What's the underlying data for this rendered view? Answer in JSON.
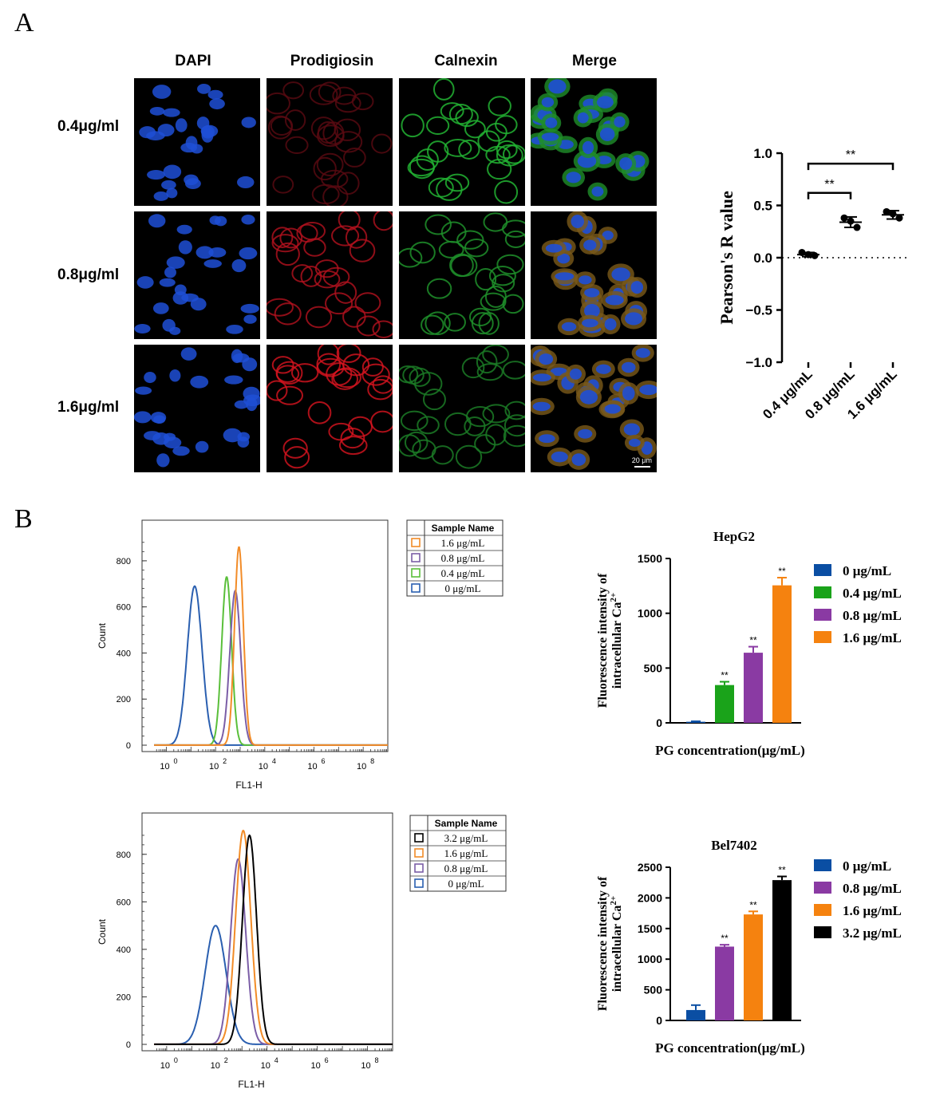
{
  "panel_a_label": "A",
  "panel_b_label": "B",
  "microscopy": {
    "columns": [
      "DAPI",
      "Prodigiosin",
      "Calnexin",
      "Merge"
    ],
    "rows": [
      "0.4μg/ml",
      "0.8μg/ml",
      "1.6μg/ml"
    ],
    "scale_bar_label": "20 μm"
  },
  "chart_data": [
    {
      "type": "scatter",
      "id": "pearson",
      "ylabel": "Pearson's R value",
      "categories": [
        "0.4 μg/mL",
        "0.8 μg/mL",
        "1.6 μg/mL"
      ],
      "points": [
        [
          0.05,
          0.03,
          0.02
        ],
        [
          0.38,
          0.35,
          0.29
        ],
        [
          0.44,
          0.42,
          0.38
        ]
      ],
      "means": [
        0.03,
        0.34,
        0.41
      ],
      "errors": [
        0.02,
        0.05,
        0.04
      ],
      "ylim": [
        -1.0,
        1.0
      ],
      "yticks": [
        "1.0",
        "0.5",
        "0.0",
        "−0.5",
        "−1.0"
      ],
      "significance": [
        "**",
        "**"
      ]
    },
    {
      "type": "line",
      "id": "hepg2-hist",
      "xlabel": "FL1-H",
      "ylabel": "Count",
      "ylim": [
        0,
        900
      ],
      "xscale": "log",
      "xtick_exponents": [
        "0",
        "2",
        "4",
        "6",
        "8"
      ],
      "yticks": [
        "0",
        "200",
        "400",
        "600",
        "800"
      ],
      "legend_title": "Sample Name",
      "legend_position": "top-right",
      "series": [
        {
          "name": "1.6 μg/mL",
          "color": "#f28c28",
          "peak_log10": 2.95,
          "peak_count": 860,
          "width": 0.18
        },
        {
          "name": "0.8 μg/mL",
          "color": "#7b5ea7",
          "peak_log10": 2.8,
          "peak_count": 670,
          "width": 0.22
        },
        {
          "name": "0.4 μg/mL",
          "color": "#5abf3a",
          "peak_log10": 2.45,
          "peak_count": 730,
          "width": 0.2
        },
        {
          "name": "0 μg/mL",
          "color": "#2a5fb0",
          "peak_log10": 1.15,
          "peak_count": 690,
          "width": 0.3
        }
      ]
    },
    {
      "type": "bar",
      "id": "hepg2-bar",
      "title": "HepG2",
      "xlabel": "PG concentration(μg/mL)",
      "ylabel_line1": "Fluorescence intensity of",
      "ylabel_line2": "intracellular Ca",
      "ylabel_sup": "2+",
      "ylim": [
        0,
        1500
      ],
      "yticks": [
        "0",
        "500",
        "1000",
        "1500"
      ],
      "categories": [
        "0 μg/mL",
        "0.4 μg/mL",
        "0.8 μg/mL",
        "1.6 μg/mL"
      ],
      "values": [
        10,
        345,
        640,
        1255
      ],
      "errors": [
        4,
        30,
        55,
        70
      ],
      "colors": [
        "#0a4ea3",
        "#1aa31a",
        "#8a3aa3",
        "#f5820f"
      ],
      "significance": [
        "",
        "**",
        "**",
        "**"
      ],
      "legend_position": "right"
    },
    {
      "type": "line",
      "id": "bel7402-hist",
      "xlabel": "FL1-H",
      "ylabel": "Count",
      "ylim": [
        0,
        900
      ],
      "xscale": "log",
      "xtick_exponents": [
        "0",
        "2",
        "4",
        "6",
        "8"
      ],
      "yticks": [
        "0",
        "200",
        "400",
        "600",
        "800"
      ],
      "legend_title": "Sample Name",
      "legend_position": "top-right",
      "series": [
        {
          "name": "3.2 μg/mL",
          "color": "#000000",
          "peak_log10": 3.3,
          "peak_count": 880,
          "width": 0.28
        },
        {
          "name": "1.6 μg/mL",
          "color": "#f28c28",
          "peak_log10": 3.05,
          "peak_count": 900,
          "width": 0.3
        },
        {
          "name": "0.8 μg/mL",
          "color": "#7b5ea7",
          "peak_log10": 2.85,
          "peak_count": 780,
          "width": 0.3
        },
        {
          "name": "0 μg/mL",
          "color": "#2a5fb0",
          "peak_log10": 1.95,
          "peak_count": 500,
          "width": 0.42
        }
      ]
    },
    {
      "type": "bar",
      "id": "bel7402-bar",
      "title": "Bel7402",
      "xlabel": "PG concentration(μg/mL)",
      "ylabel_line1": "Fluorescence intensity of",
      "ylabel_line2": "intracellular Ca",
      "ylabel_sup": "2+",
      "ylim": [
        0,
        2500
      ],
      "yticks": [
        "0",
        "500",
        "1000",
        "1500",
        "2000",
        "2500"
      ],
      "categories": [
        "0 μg/mL",
        "0.8 μg/mL",
        "1.6 μg/mL",
        "3.2 μg/mL"
      ],
      "values": [
        170,
        1205,
        1730,
        2290
      ],
      "errors": [
        80,
        30,
        50,
        60
      ],
      "colors": [
        "#0a4ea3",
        "#8a3aa3",
        "#f5820f",
        "#000000"
      ],
      "significance": [
        "",
        "**",
        "**",
        "**"
      ],
      "legend_position": "right"
    }
  ]
}
